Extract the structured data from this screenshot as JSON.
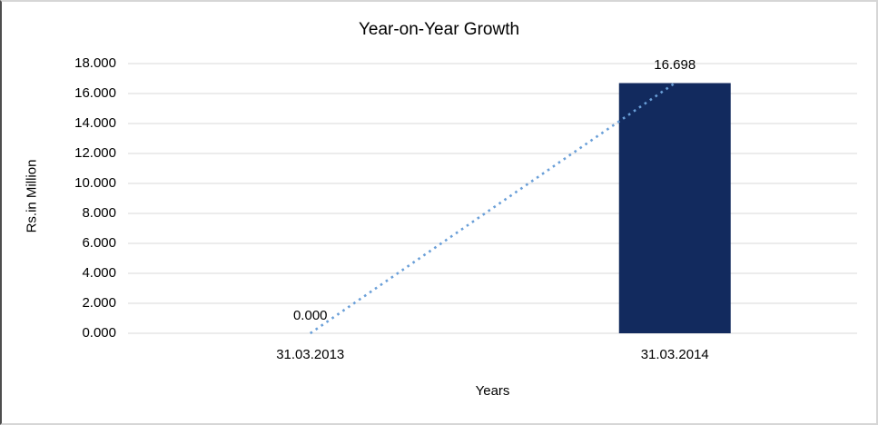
{
  "chart_data": {
    "type": "bar",
    "title": "Year-on-Year Growth",
    "xlabel": "Years",
    "ylabel": "Rs.in Million",
    "categories": [
      "31.03.2013",
      "31.03.2014"
    ],
    "values": [
      0,
      16.698
    ],
    "data_labels": [
      "0.000",
      "16.698"
    ],
    "yticks": [
      "0.000",
      "2.000",
      "4.000",
      "6.000",
      "8.000",
      "10.000",
      "12.000",
      "14.000",
      "16.000",
      "18.000"
    ],
    "ylim": [
      0,
      18
    ],
    "grid": true,
    "legend": false,
    "trendline": "dotted line connecting the two data points",
    "colors": {
      "bar": "#122a5e",
      "trendline": "#6a9fd8",
      "gridline": "#d9d9d9",
      "text": "#000000",
      "frame_border": "#d6d6d6",
      "frame_left_border": "#4d4d4d"
    }
  }
}
